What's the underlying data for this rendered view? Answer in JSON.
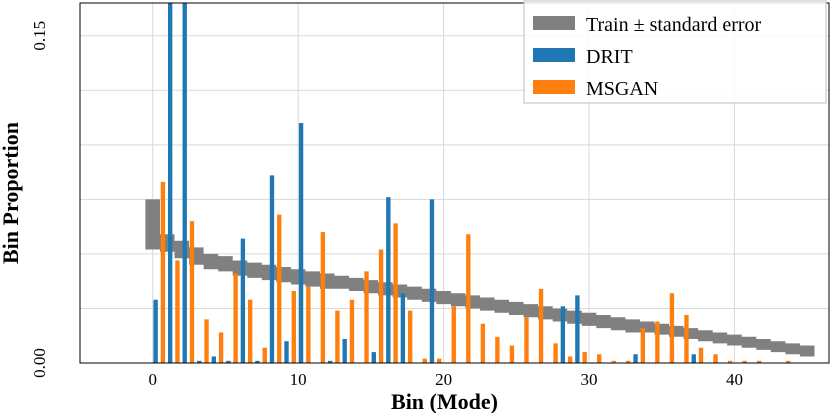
{
  "chart_data": {
    "type": "bar",
    "xlabel": "Bin (Mode)",
    "ylabel": "Bin Proportion",
    "xlim": [
      -5,
      46.5
    ],
    "ylim": [
      0,
      0.165
    ],
    "x_ticks": [
      0,
      10,
      20,
      30,
      40
    ],
    "y_ticks": [
      0.0,
      0.15
    ],
    "y_tick_labels": [
      "0.00",
      "0.15"
    ],
    "grid": true,
    "legend_position": "top-right",
    "colors": {
      "train": "#808080",
      "drit": "#1f77b4",
      "msgan": "#ff7f0e",
      "grid": "#d9d9d9",
      "frame": "#000000"
    },
    "train_band": {
      "name": "Train ± standard error",
      "lower": [
        0.052,
        0.051,
        0.048,
        0.045,
        0.043,
        0.042,
        0.04,
        0.039,
        0.038,
        0.037,
        0.036,
        0.035,
        0.034,
        0.034,
        0.033,
        0.032,
        0.031,
        0.03,
        0.029,
        0.028,
        0.027,
        0.026,
        0.025,
        0.024,
        0.023,
        0.022,
        0.021,
        0.02,
        0.019,
        0.018,
        0.017,
        0.016,
        0.015,
        0.014,
        0.014,
        0.013,
        0.012,
        0.011,
        0.01,
        0.009,
        0.008,
        0.007,
        0.006,
        0.005,
        0.004,
        0.003
      ],
      "upper": [
        0.075,
        0.059,
        0.056,
        0.053,
        0.05,
        0.049,
        0.047,
        0.046,
        0.045,
        0.044,
        0.043,
        0.042,
        0.041,
        0.04,
        0.039,
        0.038,
        0.037,
        0.036,
        0.035,
        0.034,
        0.033,
        0.032,
        0.031,
        0.03,
        0.029,
        0.028,
        0.027,
        0.026,
        0.025,
        0.024,
        0.023,
        0.022,
        0.021,
        0.02,
        0.019,
        0.018,
        0.017,
        0.016,
        0.015,
        0.014,
        0.013,
        0.012,
        0.011,
        0.01,
        0.009,
        0.008
      ]
    },
    "series": [
      {
        "name": "DRIT",
        "values": [
          0.029,
          0.165,
          0.165,
          0.001,
          0.003,
          0.001,
          0.057,
          0.001,
          0.086,
          0.01,
          0.11,
          0.0,
          0.001,
          0.011,
          0.0,
          0.005,
          0.076,
          0.032,
          0.0,
          0.075,
          0.0,
          0.0,
          0.0,
          0.0,
          0.0,
          0.0,
          0.0,
          0.0,
          0.026,
          0.031,
          0.0,
          0.0,
          0.0,
          0.004,
          0.0,
          0.0,
          0.0,
          0.004,
          0.0,
          0.0,
          0.0,
          0.0,
          0.0,
          0.0,
          0.0,
          0.0
        ]
      },
      {
        "name": "MSGAN",
        "values": [
          0.083,
          0.047,
          0.065,
          0.02,
          0.014,
          0.041,
          0.029,
          0.007,
          0.068,
          0.033,
          0.035,
          0.06,
          0.024,
          0.029,
          0.042,
          0.052,
          0.064,
          0.024,
          0.002,
          0.002,
          0.026,
          0.059,
          0.018,
          0.012,
          0.008,
          0.021,
          0.034,
          0.009,
          0.003,
          0.005,
          0.004,
          0.001,
          0.001,
          0.016,
          0.019,
          0.032,
          0.022,
          0.007,
          0.004,
          0.001,
          0.001,
          0.001,
          0.0,
          0.001,
          0.0,
          0.0
        ]
      }
    ]
  }
}
